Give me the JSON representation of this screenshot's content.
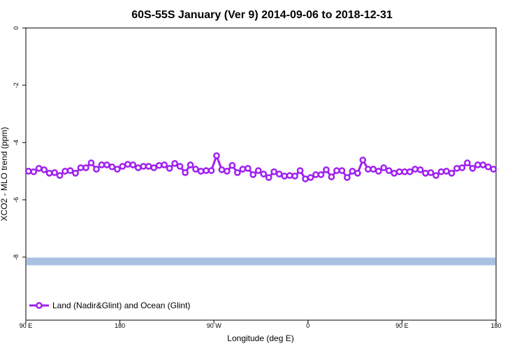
{
  "chart_data": {
    "type": "line",
    "title": "60S-55S January (Ver 9)   2014-09-06 to 2018-12-31",
    "x_label": "Longitude (deg E)",
    "y_label": "XCO2 - MLO trend (ppm)",
    "xlim": [
      90,
      540
    ],
    "ylim": [
      -10.2,
      0
    ],
    "xticks": [
      {
        "value": 90,
        "label": "90 E"
      },
      180,
      {
        "value": 270,
        "label": "90 W"
      },
      {
        "value": 360,
        "label": "0"
      },
      {
        "value": 450,
        "label": "90 E"
      },
      {
        "value": 540,
        "label": "180"
      }
    ],
    "yticks": [
      0,
      -2,
      -4,
      -6,
      -8
    ],
    "legend": "bottom-left",
    "bands": [
      {
        "y": -8.15,
        "color": "#a9c0e2"
      }
    ],
    "x": [
      92.5,
      97.5,
      102.5,
      107.5,
      112.5,
      117.5,
      122.5,
      127.5,
      132.5,
      137.5,
      142.5,
      147.5,
      152.5,
      157.5,
      162.5,
      167.5,
      172.5,
      177.5,
      182.5,
      187.5,
      192.5,
      197.5,
      202.5,
      207.5,
      212.5,
      217.5,
      222.5,
      227.5,
      232.5,
      237.5,
      242.5,
      247.5,
      252.5,
      257.5,
      262.5,
      267.5,
      272.5,
      277.5,
      282.5,
      287.5,
      292.5,
      297.5,
      302.5,
      307.5,
      312.5,
      317.5,
      322.5,
      327.5,
      332.5,
      337.5,
      342.5,
      347.5,
      352.5,
      357.5,
      362.5,
      367.5,
      372.5,
      377.5,
      382.5,
      387.5,
      392.5,
      397.5,
      402.5,
      407.5,
      412.5,
      417.5,
      422.5,
      427.5,
      432.5,
      437.5,
      442.5,
      447.5,
      452.5,
      457.5,
      462.5,
      467.5,
      472.5,
      477.5,
      482.5,
      487.5,
      492.5,
      497.5,
      502.5,
      507.5,
      512.5,
      517.5,
      522.5,
      527.5,
      532.5,
      537.5
    ],
    "series": [
      {
        "name": "Land (Nadir&Glint) and Ocean (Glint)",
        "color": "#a020f0",
        "values": [
          -5.0,
          -5.02,
          -4.9,
          -4.95,
          -5.07,
          -5.05,
          -5.15,
          -5.0,
          -4.98,
          -5.07,
          -4.88,
          -4.88,
          -4.71,
          -4.93,
          -4.78,
          -4.78,
          -4.85,
          -4.93,
          -4.83,
          -4.76,
          -4.78,
          -4.88,
          -4.83,
          -4.83,
          -4.88,
          -4.8,
          -4.78,
          -4.9,
          -4.73,
          -4.83,
          -5.05,
          -4.78,
          -4.93,
          -5.0,
          -4.98,
          -4.98,
          -4.46,
          -4.95,
          -5.0,
          -4.8,
          -5.05,
          -4.93,
          -4.9,
          -5.12,
          -4.98,
          -5.1,
          -5.22,
          -5.02,
          -5.1,
          -5.17,
          -5.15,
          -5.17,
          -4.98,
          -5.27,
          -5.22,
          -5.12,
          -5.12,
          -4.95,
          -5.2,
          -4.98,
          -4.98,
          -5.22,
          -5.0,
          -5.07,
          -4.61,
          -4.93,
          -4.93,
          -5.0,
          -4.88,
          -4.98,
          -5.07,
          -5.02,
          -5.02,
          -5.02,
          -4.93,
          -4.95,
          -5.07,
          -5.05,
          -5.15,
          -5.02,
          -5.0,
          -5.07,
          -4.9,
          -4.88,
          -4.71,
          -4.9,
          -4.78,
          -4.78,
          -4.85,
          -4.93
        ]
      }
    ]
  }
}
